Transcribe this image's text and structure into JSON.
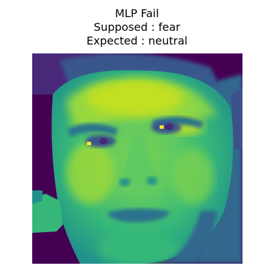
{
  "title": {
    "line1": "MLP Fail",
    "line2": "Supposed : fear",
    "line3": "Expected : neutral"
  },
  "image": {
    "subject": "face-portrait",
    "colormap": "viridis",
    "colors": {
      "darkest": "#440154",
      "dark": "#3b528b",
      "mid": "#21918c",
      "light": "#5ec962",
      "lightest": "#fde725"
    }
  }
}
